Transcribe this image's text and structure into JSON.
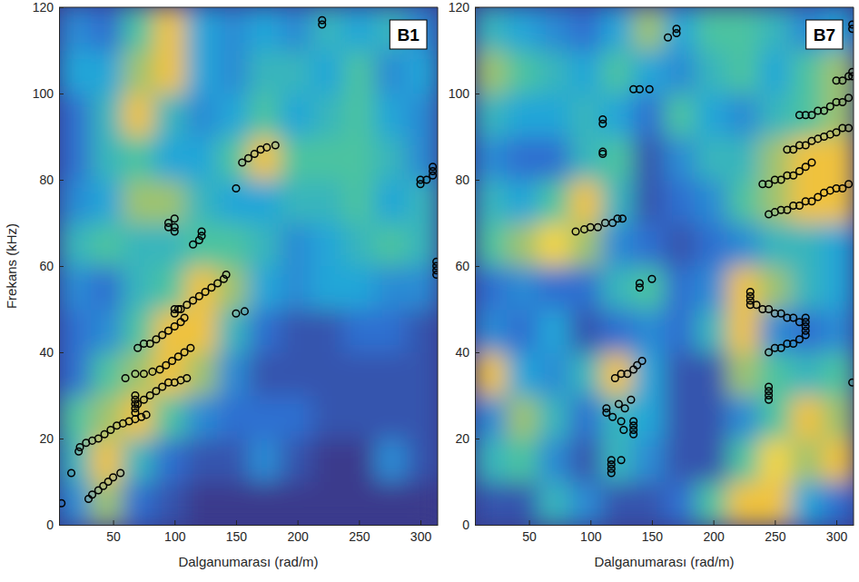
{
  "chart_data": [
    {
      "type": "scatter",
      "title": "B1",
      "x_label": "Dalganumarası (rad/m)",
      "y_label": "Frekans (kHz)",
      "xlim": [
        6,
        314
      ],
      "ylim": [
        0,
        120
      ],
      "xticks": [
        50,
        100,
        150,
        200,
        250,
        300
      ],
      "yticks": [
        0,
        20,
        40,
        60,
        80,
        100,
        120
      ],
      "marker": "circle",
      "color": "#000000",
      "x": [
        8,
        16,
        30,
        33,
        38,
        42,
        46,
        50,
        56,
        22,
        23,
        28,
        33,
        38,
        43,
        48,
        53,
        58,
        63,
        68,
        73,
        77,
        68,
        68,
        68,
        68,
        68,
        70,
        75,
        80,
        85,
        90,
        95,
        100,
        105,
        110,
        60,
        68,
        75,
        82,
        88,
        93,
        98,
        103,
        108,
        113,
        70,
        75,
        80,
        85,
        90,
        95,
        100,
        105,
        108,
        100,
        100,
        103,
        105,
        110,
        115,
        120,
        125,
        130,
        135,
        140,
        142,
        150,
        157,
        95,
        95,
        100,
        100,
        100,
        115,
        120,
        122,
        122,
        150,
        155,
        160,
        165,
        170,
        175,
        182,
        220,
        220,
        300,
        300,
        305,
        310,
        310,
        310,
        313,
        313,
        313,
        313
      ],
      "y": [
        5,
        12,
        6,
        7,
        8,
        9,
        10,
        11,
        12,
        17,
        18,
        19,
        19.5,
        20,
        21,
        22,
        23,
        23.5,
        24,
        24.5,
        25,
        25.5,
        26,
        27,
        28,
        29,
        30,
        28,
        29,
        30,
        31,
        32,
        33,
        33,
        33.5,
        34,
        34,
        35,
        35,
        35.5,
        36,
        37,
        38,
        39,
        40,
        41,
        41,
        42,
        42,
        43,
        44,
        45,
        46,
        47,
        48,
        49,
        50,
        50,
        50,
        51,
        52,
        53,
        54,
        55,
        56,
        57,
        58,
        49,
        49.5,
        69,
        70,
        68,
        69,
        71,
        65,
        66,
        67,
        68,
        78,
        84,
        85,
        86,
        87,
        87.5,
        88,
        116,
        117,
        79,
        80,
        80,
        81,
        82,
        83,
        58,
        59,
        60,
        61
      ],
      "zlim": [
        0,
        1
      ],
      "z": [
        [
          0.3,
          0.7,
          0.2,
          0.1,
          0,
          0,
          0,
          0,
          0,
          0,
          0,
          0
        ],
        [
          0.5,
          0.8,
          0.5,
          0.2,
          0.1,
          0.1,
          0.3,
          0.1,
          0,
          0,
          0.3,
          0.1
        ],
        [
          0.6,
          0.7,
          0.8,
          0.6,
          0.3,
          0.2,
          0.2,
          0.2,
          0.1,
          0.1,
          0.1,
          0.1
        ],
        [
          0.2,
          0.6,
          0.7,
          0.8,
          0.7,
          0.3,
          0.1,
          0.1,
          0.1,
          0.1,
          0.1,
          0.1
        ],
        [
          0.2,
          0.3,
          0.6,
          0.8,
          0.8,
          0.5,
          0.2,
          0.1,
          0.1,
          0.2,
          0.2,
          0.1
        ],
        [
          0.3,
          0.2,
          0.5,
          0.6,
          0.8,
          0.7,
          0.4,
          0.3,
          0.4,
          0.4,
          0.3,
          0.3
        ],
        [
          0.5,
          0.6,
          0.5,
          0.5,
          0.6,
          0.6,
          0.5,
          0.3,
          0.4,
          0.5,
          0.6,
          0.5
        ],
        [
          0.3,
          0.4,
          0.7,
          0.7,
          0.5,
          0.4,
          0.4,
          0.5,
          0.5,
          0.6,
          0.4,
          0.5
        ],
        [
          0.2,
          0.5,
          0.6,
          0.4,
          0.4,
          0.6,
          0.8,
          0.6,
          0.6,
          0.6,
          0.5,
          0.3
        ],
        [
          0.2,
          0.5,
          0.8,
          0.5,
          0.3,
          0.4,
          0.6,
          0.4,
          0.5,
          0.6,
          0.4,
          0.3
        ],
        [
          0.4,
          0.4,
          0.7,
          0.8,
          0.4,
          0.3,
          0.5,
          0.5,
          0.4,
          0.6,
          0.3,
          0.4
        ],
        [
          0.3,
          0.2,
          0.6,
          0.8,
          0.4,
          0.3,
          0.4,
          0.3,
          0.5,
          0.4,
          0.5,
          0.3
        ]
      ]
    },
    {
      "type": "scatter",
      "title": "B7",
      "x_label": "Dalganumarası (rad/m)",
      "xlim": [
        6,
        314
      ],
      "ylim": [
        0,
        120
      ],
      "xticks": [
        50,
        100,
        150,
        200,
        250,
        300
      ],
      "yticks": [
        0,
        20,
        40,
        60,
        80,
        100,
        120
      ],
      "marker": "circle",
      "color": "#000000",
      "x": [
        117,
        117,
        117,
        117,
        125,
        113,
        113,
        118,
        123,
        128,
        133,
        125,
        127,
        135,
        135,
        135,
        135,
        120,
        125,
        130,
        135,
        138,
        142,
        140,
        140,
        150,
        88,
        95,
        100,
        106,
        112,
        118,
        122,
        126,
        110,
        110,
        110,
        110,
        135,
        140,
        148,
        163,
        170,
        170,
        230,
        230,
        230,
        230,
        235,
        240,
        245,
        250,
        255,
        260,
        265,
        270,
        275,
        275,
        275,
        275,
        275,
        245,
        250,
        255,
        260,
        265,
        270,
        245,
        245,
        245,
        245,
        313,
        245,
        250,
        255,
        260,
        265,
        270,
        275,
        280,
        285,
        290,
        295,
        300,
        305,
        310,
        240,
        245,
        250,
        255,
        260,
        265,
        270,
        275,
        280,
        260,
        265,
        270,
        275,
        280,
        285,
        290,
        295,
        300,
        305,
        310,
        270,
        275,
        280,
        285,
        290,
        295,
        300,
        305,
        310,
        300,
        305,
        310,
        313,
        313,
        313,
        313
      ],
      "y": [
        12,
        13,
        14,
        15,
        15,
        26,
        27,
        25,
        28,
        27,
        29,
        24,
        22,
        21,
        22,
        23,
        24,
        34,
        35,
        35,
        36,
        37,
        38,
        55,
        56,
        57,
        68,
        68.5,
        69,
        69,
        70,
        70,
        71,
        71,
        86,
        86.5,
        93,
        94,
        101,
        101,
        101,
        113,
        114,
        115,
        51,
        52,
        53,
        54,
        51,
        50,
        50,
        49,
        49,
        48,
        48,
        47,
        44,
        45,
        46,
        47,
        48,
        40,
        41,
        41,
        42,
        42,
        43,
        29,
        30,
        31,
        32,
        33,
        72,
        72.5,
        73,
        73,
        74,
        74,
        75,
        75,
        76,
        77,
        77.5,
        78,
        78,
        79,
        79,
        79,
        80,
        80,
        81,
        81,
        82,
        83,
        84,
        87,
        87,
        88,
        88,
        89,
        89.5,
        90,
        90.5,
        91,
        92,
        92,
        95,
        95,
        95,
        96,
        96,
        97,
        98,
        98,
        99,
        103,
        103,
        104,
        104,
        105,
        115,
        116
      ],
      "zlim": [
        0,
        1
      ],
      "z": [
        [
          0.1,
          0.1,
          0.5,
          0.3,
          0.1,
          0.1,
          0.2,
          0.6,
          0.8,
          0.8,
          0.4,
          0.2
        ],
        [
          0.5,
          0.6,
          0.3,
          0.1,
          0.5,
          0.3,
          0.1,
          0.1,
          0.6,
          0.9,
          0.7,
          0.8
        ],
        [
          0.3,
          0.7,
          0.5,
          0.2,
          0.5,
          0.4,
          0.1,
          0.1,
          0.3,
          0.6,
          0.8,
          0.7
        ],
        [
          0.8,
          0.4,
          0.3,
          0.5,
          0.8,
          0.4,
          0.1,
          0.1,
          0.7,
          0.6,
          0.5,
          0.6
        ],
        [
          0.3,
          0.2,
          0.4,
          0.1,
          0.2,
          0.3,
          0.2,
          0.5,
          0.8,
          0.3,
          0.2,
          0.3
        ],
        [
          0.2,
          0.3,
          0.2,
          0.2,
          0.5,
          0.6,
          0.2,
          0.3,
          0.8,
          0.7,
          0.5,
          0.4
        ],
        [
          0.6,
          0.7,
          0.9,
          0.7,
          0.3,
          0.2,
          0.1,
          0.2,
          0.3,
          0.5,
          0.5,
          0.4
        ],
        [
          0.5,
          0.4,
          0.6,
          0.8,
          0.5,
          0.1,
          0.2,
          0.3,
          0.6,
          0.7,
          0.8,
          0.8
        ],
        [
          0.3,
          0.2,
          0.2,
          0.5,
          0.6,
          0.1,
          0.3,
          0.5,
          0.5,
          0.7,
          0.8,
          0.8
        ],
        [
          0.5,
          0.4,
          0.4,
          0.5,
          0.4,
          0.2,
          0.6,
          0.4,
          0.3,
          0.5,
          0.6,
          0.7
        ],
        [
          0.7,
          0.6,
          0.5,
          0.4,
          0.6,
          0.4,
          0.3,
          0.5,
          0.6,
          0.4,
          0.6,
          0.7
        ],
        [
          0.5,
          0.4,
          0.3,
          0.2,
          0.4,
          0.7,
          0.4,
          0.6,
          0.6,
          0.5,
          0.3,
          0.4
        ]
      ]
    }
  ]
}
